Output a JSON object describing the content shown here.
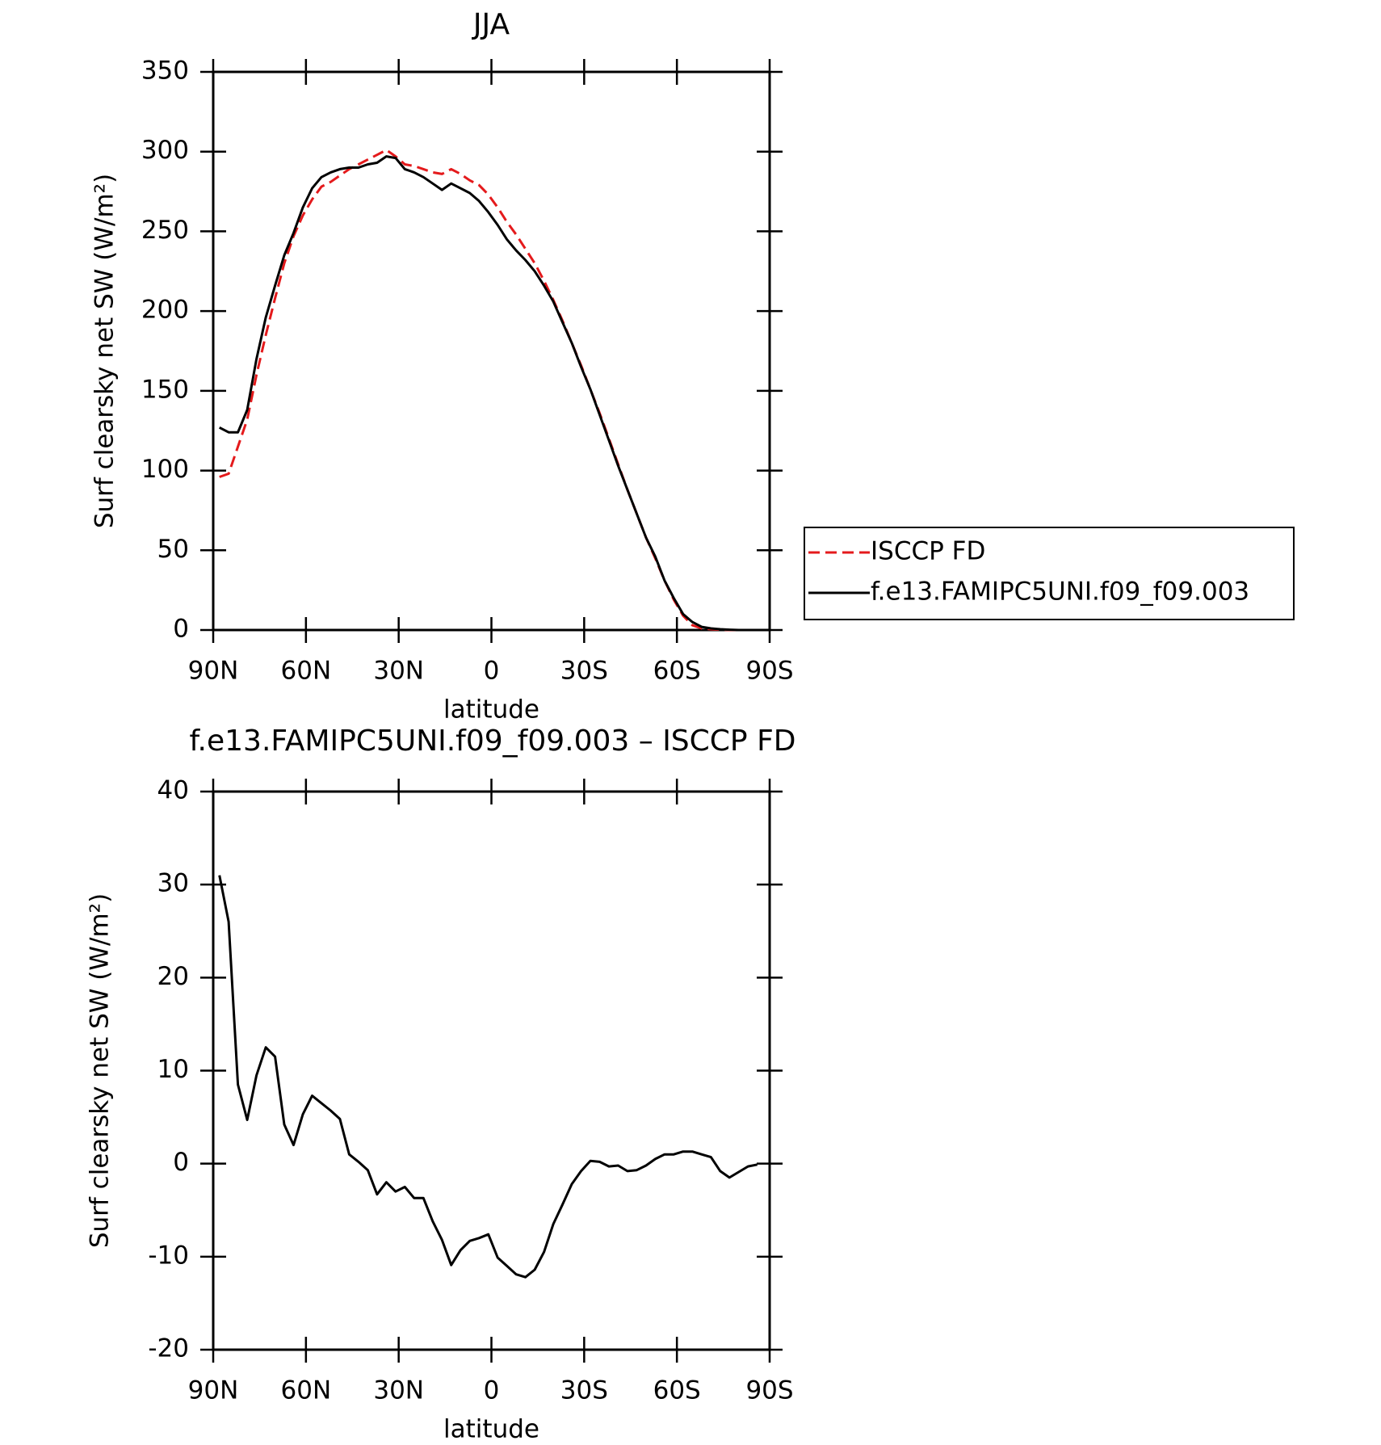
{
  "chart_data": [
    {
      "type": "line",
      "title": "JJA",
      "xlabel": "latitude",
      "ylabel": "Surf clearsky net SW (W/m²)",
      "x": [
        88,
        85,
        82,
        79,
        76,
        73,
        70,
        67,
        64,
        61,
        58,
        55,
        52,
        49,
        46,
        43,
        40,
        37,
        34,
        31,
        28,
        25,
        22,
        19,
        16,
        13,
        10,
        7,
        4,
        1,
        -2,
        -5,
        -8,
        -11,
        -14,
        -17,
        -20,
        -23,
        -26,
        -29,
        -32,
        -35,
        -38,
        -41,
        -44,
        -47,
        -50,
        -53,
        -56,
        -59,
        -62,
        -65,
        -68,
        -71,
        -74,
        -77,
        -80,
        -83,
        -86
      ],
      "xlim": [
        90,
        -90
      ],
      "xticks": [
        {
          "value": 90,
          "label": "90N"
        },
        {
          "value": 60,
          "label": "60N"
        },
        {
          "value": 30,
          "label": "30N"
        },
        0,
        {
          "value": -30,
          "label": "30S"
        },
        {
          "value": -60,
          "label": "60S"
        },
        {
          "value": -90,
          "label": "90S"
        }
      ],
      "ylim": [
        0,
        350
      ],
      "yticks": [
        0,
        50,
        100,
        150,
        200,
        250,
        300,
        350
      ],
      "legend": "outside-right",
      "series": [
        {
          "name": "ISCCP FD",
          "color": "#e41a1c",
          "line_style": "dashed",
          "values": [
            96,
            98,
            115,
            132,
            160,
            185,
            208,
            230,
            247,
            260,
            270,
            278,
            281,
            285,
            289,
            292,
            295,
            298,
            301,
            297,
            292,
            291,
            289,
            287,
            286,
            289,
            286,
            282,
            279,
            273,
            265,
            256,
            248,
            239,
            230,
            219,
            207,
            194,
            180,
            166,
            151,
            136,
            120,
            104,
            88,
            73,
            58,
            45,
            31,
            19,
            9,
            3,
            1,
            0.5,
            0.2,
            0,
            0,
            0,
            0
          ]
        },
        {
          "name": "f.e13.FAMIPC5UNI.f09_f09.003",
          "color": "#000000",
          "line_style": "solid",
          "values": [
            127,
            124,
            124,
            138,
            170,
            196,
            216,
            235,
            249,
            265,
            277,
            284,
            287,
            289,
            290,
            290,
            292,
            293,
            297,
            296,
            289,
            287,
            284,
            280,
            276,
            280,
            277,
            274,
            269,
            262,
            254,
            245,
            238,
            232,
            225,
            216,
            206,
            193,
            180,
            165,
            151,
            135,
            119,
            103,
            88,
            73,
            58,
            46,
            31,
            20,
            10,
            5,
            2,
            1,
            0.5,
            0.2,
            0,
            0,
            0
          ]
        }
      ]
    },
    {
      "type": "line",
      "title": "f.e13.FAMIPC5UNI.f09_f09.003 – ISCCP FD",
      "xlabel": "latitude",
      "ylabel": "Surf clearsky net SW (W/m²)",
      "x": [
        88,
        85,
        82,
        79,
        76,
        73,
        70,
        67,
        64,
        61,
        58,
        55,
        52,
        49,
        46,
        43,
        40,
        37,
        34,
        31,
        28,
        25,
        22,
        19,
        16,
        13,
        10,
        7,
        4,
        1,
        -2,
        -5,
        -8,
        -11,
        -14,
        -17,
        -20,
        -23,
        -26,
        -29,
        -32,
        -35,
        -38,
        -41,
        -44,
        -47,
        -50,
        -53,
        -56,
        -59,
        -62,
        -65,
        -68,
        -71,
        -74,
        -77,
        -80,
        -83,
        -86
      ],
      "xlim": [
        90,
        -90
      ],
      "xticks": [
        {
          "value": 90,
          "label": "90N"
        },
        {
          "value": 60,
          "label": "60N"
        },
        {
          "value": 30,
          "label": "30N"
        },
        0,
        {
          "value": -30,
          "label": "30S"
        },
        {
          "value": -60,
          "label": "60S"
        },
        {
          "value": -90,
          "label": "90S"
        }
      ],
      "ylim": [
        -20,
        40
      ],
      "yticks": [
        -20,
        -10,
        0,
        10,
        20,
        30,
        40
      ],
      "series": [
        {
          "color": "#000000",
          "line_style": "solid",
          "values": [
            31,
            26,
            8.5,
            4.7,
            9.5,
            12.5,
            11.5,
            4.2,
            2,
            5.3,
            7.3,
            6.5,
            5.7,
            4.8,
            1,
            0.2,
            -0.7,
            -3.3,
            -2,
            -3,
            -2.5,
            -3.7,
            -3.7,
            -6.2,
            -8.2,
            -10.9,
            -9.3,
            -8.3,
            -8,
            -7.6,
            -10.1,
            -11,
            -11.9,
            -12.2,
            -11.4,
            -9.5,
            -6.5,
            -4.4,
            -2.2,
            -0.8,
            0.3,
            0.2,
            -0.3,
            -0.2,
            -0.8,
            -0.7,
            -0.2,
            0.5,
            1,
            1,
            1.3,
            1.3,
            1,
            0.7,
            -0.8,
            -1.5,
            -0.9,
            -0.3,
            -0.1
          ]
        }
      ]
    }
  ]
}
